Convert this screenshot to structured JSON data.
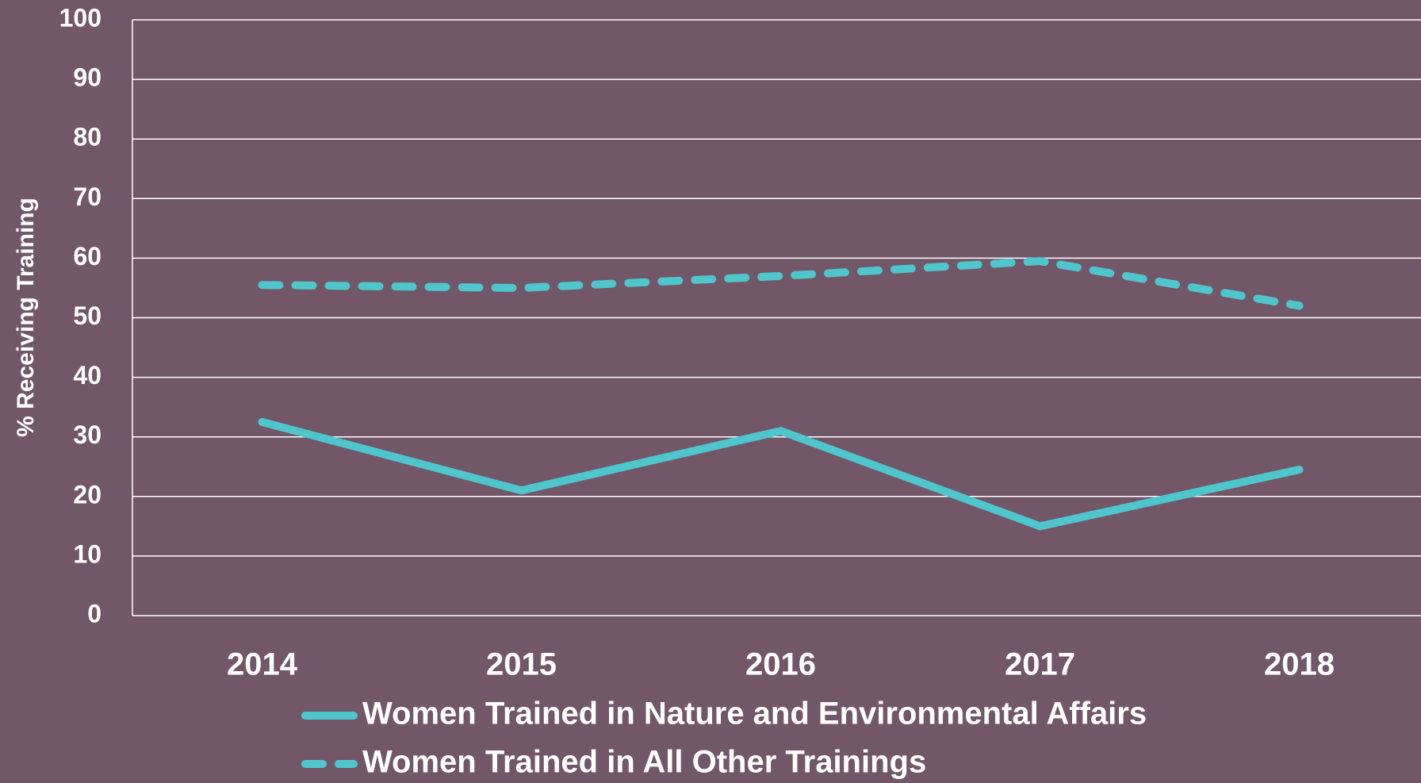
{
  "chart_data": {
    "type": "line",
    "y_label": "% Receiving Training",
    "categories": [
      "2014",
      "2015",
      "2016",
      "2017",
      "2018"
    ],
    "series": [
      {
        "name": "Women Trained in Nature and Environmental Affairs",
        "color": "#4fc6cc",
        "dash": false,
        "values": [
          32.5,
          21,
          31,
          15,
          24.5
        ]
      },
      {
        "name": "Women Trained in All Other Trainings",
        "color": "#4fc6cc",
        "dash": true,
        "values": [
          55.5,
          55,
          57,
          59.5,
          52
        ]
      }
    ],
    "ylim": [
      0,
      100
    ],
    "yticks": [
      0,
      10,
      20,
      30,
      40,
      50,
      60,
      70,
      80,
      90,
      100
    ],
    "grid": true,
    "legend": "bottom"
  }
}
